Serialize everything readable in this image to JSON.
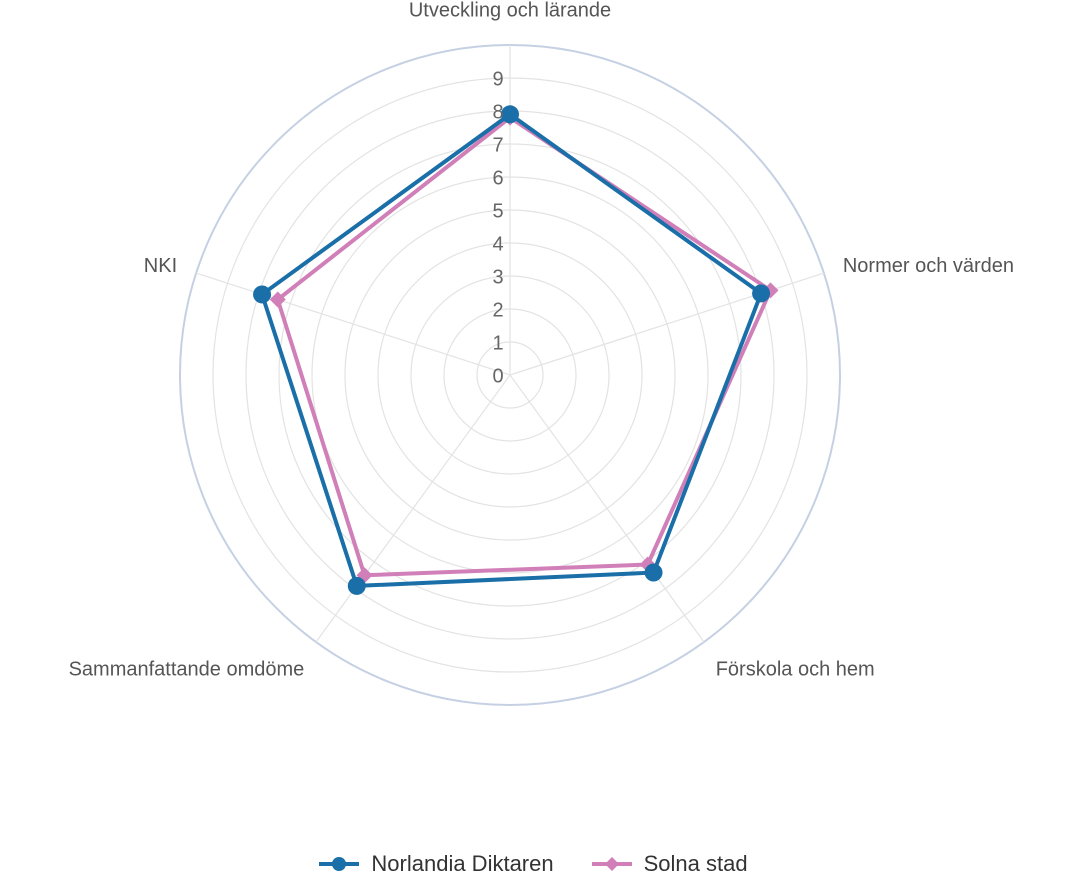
{
  "chart_data": {
    "type": "radar",
    "categories": [
      "Utveckling och lärande",
      "Normer och värden",
      "Förskola och hem",
      "Sammanfattande omdöme",
      "NKI"
    ],
    "rlim": [
      0,
      10
    ],
    "ticks": [
      0,
      1,
      2,
      3,
      4,
      5,
      6,
      7,
      8,
      9
    ],
    "grid": true,
    "legend_position": "bottom",
    "series": [
      {
        "name": "Norlandia Diktaren",
        "color": "#1a6fa8",
        "marker": "circle",
        "values": [
          7.9,
          8.0,
          7.4,
          7.9,
          7.9
        ]
      },
      {
        "name": "Solna stad",
        "color": "#d17fb8",
        "marker": "diamond",
        "values": [
          7.8,
          8.3,
          7.1,
          7.5,
          7.4
        ]
      }
    ]
  }
}
